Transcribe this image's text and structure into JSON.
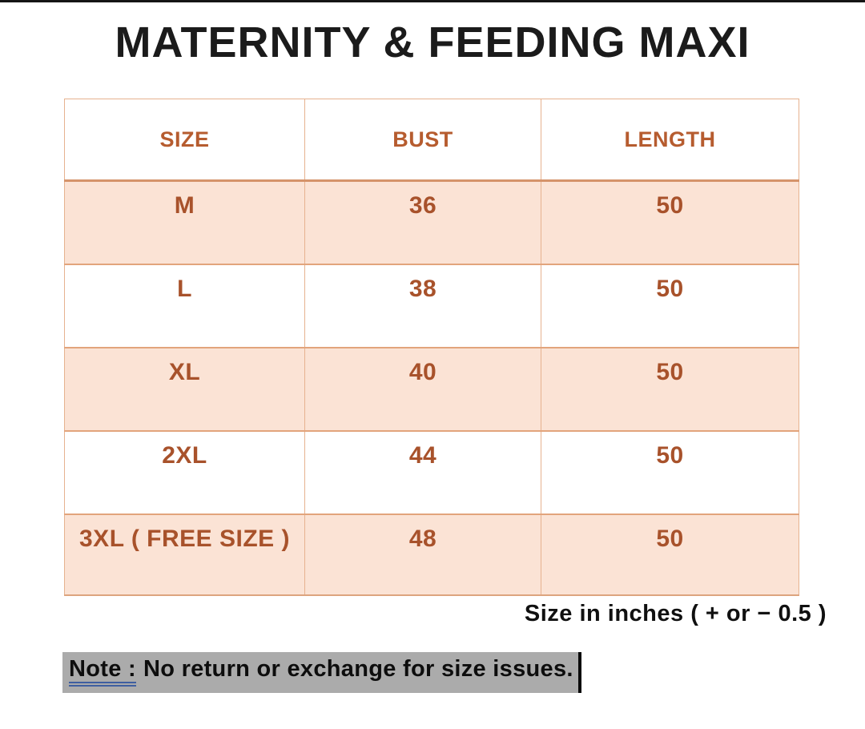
{
  "title": "MATERNITY & FEEDING MAXI",
  "chart_data": {
    "type": "table",
    "title": "MATERNITY & FEEDING MAXI",
    "columns": [
      "SIZE",
      "BUST",
      "LENGTH"
    ],
    "rows": [
      [
        "M",
        "36",
        "50"
      ],
      [
        "L",
        "38",
        "50"
      ],
      [
        "XL",
        "40",
        "50"
      ],
      [
        "2XL",
        "44",
        "50"
      ],
      [
        "3XL ( FREE SIZE )",
        "48",
        "50"
      ]
    ],
    "unit_note": "Size in inches ( + or  − 0.5 )",
    "footnote": "Note : No return or exchange for size issues."
  },
  "table": {
    "headers": [
      "SIZE",
      "BUST",
      "LENGTH"
    ],
    "rows": [
      {
        "size": "M",
        "bust": "36",
        "length": "50"
      },
      {
        "size": "L",
        "bust": "38",
        "length": "50"
      },
      {
        "size": "XL",
        "bust": "40",
        "length": "50"
      },
      {
        "size": "2XL",
        "bust": "44",
        "length": "50"
      },
      {
        "size": "3XL ( FREE SIZE )",
        "bust": "48",
        "length": "50"
      }
    ]
  },
  "footnote": "Size in inches ( + or  − 0.5 )",
  "note": {
    "label": "Note :",
    "text": "No return or exchange for size issues."
  },
  "colors": {
    "accent_text": "#b0582e",
    "row_highlight": "#fbe3d5",
    "table_border": "#e6b28f",
    "note_highlight": "#ababab",
    "note_underline": "#3f5fa0"
  }
}
